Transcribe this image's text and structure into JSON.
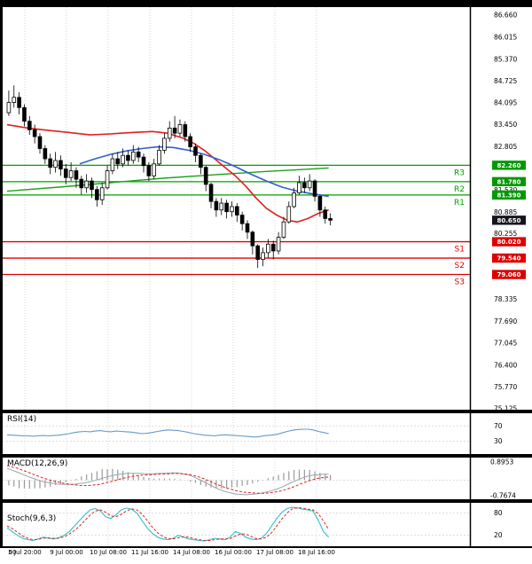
{
  "colors": {
    "background": "#000000",
    "panel_bg": "#ffffff",
    "grid": "#c4c4c4",
    "candle_up": "#ffffff",
    "candle_down": "#000000",
    "resistance": "#00a000",
    "support": "#e00000",
    "badge_resistance": "#009900",
    "badge_support": "#dd0000",
    "badge_price": "#15151f",
    "ma_red": "#e02020",
    "ma_blue": "#3060cc",
    "ma_green": "#1fa01f",
    "rsi_line": "#6699cc",
    "macd_signal": "#dd2222",
    "macd_hist": "#999999",
    "macd_line": "#9aa4b0",
    "stoch_k": "#30c0c8",
    "stoch_d": "#dd2222"
  },
  "chart_data": {
    "type": "candlestick",
    "title": "",
    "ylim": [
      75.125,
      86.66
    ],
    "y_ticks": [
      "86.660",
      "86.015",
      "85.370",
      "84.725",
      "84.095",
      "83.450",
      "82.805",
      "81.530",
      "80.885",
      "80.255",
      "78.335",
      "77.690",
      "77.045",
      "76.400",
      "75.770",
      "75.125"
    ],
    "x_labels": [
      "00",
      "5 Jul 20:00",
      "9 Jul 00:00",
      "10 Jul 08:00",
      "11 Jul 16:00",
      "14 Jul 08:00",
      "16 Jul 00:00",
      "17 Jul 08:00",
      "18 Jul 16:00"
    ],
    "levels": {
      "resistance": [
        {
          "name": "R3",
          "price": "82.260"
        },
        {
          "name": "R2",
          "price": "81.780"
        },
        {
          "name": "R1",
          "price": "81.390"
        }
      ],
      "support": [
        {
          "name": "S1",
          "price": "80.020"
        },
        {
          "name": "S2",
          "price": "79.540"
        },
        {
          "name": "S3",
          "price": "79.060"
        }
      ],
      "current_price": "80.650"
    },
    "ohlc": [
      [
        83.8,
        84.45,
        83.7,
        84.1
      ],
      [
        84.1,
        84.6,
        83.95,
        84.25
      ],
      [
        84.25,
        84.4,
        83.75,
        83.95
      ],
      [
        83.95,
        84.05,
        83.4,
        83.55
      ],
      [
        83.55,
        83.7,
        83.15,
        83.3
      ],
      [
        83.3,
        83.45,
        82.9,
        83.1
      ],
      [
        83.1,
        83.2,
        82.6,
        82.75
      ],
      [
        82.75,
        82.85,
        82.3,
        82.45
      ],
      [
        82.45,
        82.6,
        82.0,
        82.2
      ],
      [
        82.2,
        82.65,
        82.05,
        82.4
      ],
      [
        82.4,
        82.55,
        81.95,
        82.15
      ],
      [
        82.15,
        82.3,
        81.7,
        81.9
      ],
      [
        81.9,
        82.35,
        81.8,
        82.1
      ],
      [
        82.1,
        82.2,
        81.6,
        81.85
      ],
      [
        81.85,
        81.95,
        81.4,
        81.6
      ],
      [
        81.6,
        82.0,
        81.45,
        81.8
      ],
      [
        81.8,
        81.9,
        81.3,
        81.55
      ],
      [
        81.55,
        81.65,
        81.05,
        81.25
      ],
      [
        81.25,
        81.75,
        81.1,
        81.6
      ],
      [
        81.6,
        82.25,
        81.55,
        82.1
      ],
      [
        82.1,
        82.6,
        82.0,
        82.45
      ],
      [
        82.45,
        82.65,
        82.15,
        82.3
      ],
      [
        82.3,
        82.75,
        82.2,
        82.55
      ],
      [
        82.55,
        82.7,
        82.25,
        82.4
      ],
      [
        82.4,
        82.85,
        82.3,
        82.65
      ],
      [
        82.65,
        82.8,
        82.35,
        82.5
      ],
      [
        82.5,
        82.6,
        82.05,
        82.25
      ],
      [
        82.25,
        82.35,
        81.8,
        81.95
      ],
      [
        81.95,
        82.45,
        81.85,
        82.3
      ],
      [
        82.3,
        82.85,
        82.25,
        82.7
      ],
      [
        82.7,
        83.2,
        82.6,
        83.05
      ],
      [
        83.05,
        83.55,
        82.95,
        83.35
      ],
      [
        83.35,
        83.7,
        83.05,
        83.2
      ],
      [
        83.2,
        83.6,
        83.1,
        83.45
      ],
      [
        83.45,
        83.55,
        82.95,
        83.1
      ],
      [
        83.1,
        83.2,
        82.65,
        82.8
      ],
      [
        82.8,
        82.9,
        82.35,
        82.55
      ],
      [
        82.55,
        82.6,
        82.0,
        82.2
      ],
      [
        82.2,
        82.25,
        81.5,
        81.7
      ],
      [
        81.7,
        81.75,
        81.0,
        81.2
      ],
      [
        81.2,
        81.3,
        80.75,
        80.95
      ],
      [
        80.95,
        81.3,
        80.8,
        81.15
      ],
      [
        81.15,
        81.25,
        80.7,
        80.9
      ],
      [
        80.9,
        81.2,
        80.75,
        81.05
      ],
      [
        81.05,
        81.15,
        80.6,
        80.8
      ],
      [
        80.8,
        80.9,
        80.35,
        80.55
      ],
      [
        80.55,
        80.65,
        80.1,
        80.3
      ],
      [
        80.3,
        80.35,
        79.65,
        79.9
      ],
      [
        79.9,
        79.95,
        79.25,
        79.5
      ],
      [
        79.5,
        79.85,
        79.3,
        79.7
      ],
      [
        79.7,
        80.1,
        79.55,
        79.95
      ],
      [
        79.95,
        80.05,
        79.5,
        79.75
      ],
      [
        79.75,
        80.3,
        79.65,
        80.15
      ],
      [
        80.15,
        80.75,
        80.1,
        80.6
      ],
      [
        80.6,
        81.2,
        80.55,
        81.05
      ],
      [
        81.05,
        81.6,
        81.0,
        81.45
      ],
      [
        81.45,
        81.95,
        81.4,
        81.75
      ],
      [
        81.75,
        81.9,
        81.45,
        81.6
      ],
      [
        81.6,
        82.0,
        81.5,
        81.8
      ],
      [
        81.8,
        81.85,
        81.2,
        81.35
      ],
      [
        81.35,
        81.4,
        80.75,
        80.95
      ],
      [
        80.95,
        81.05,
        80.55,
        80.7
      ],
      [
        80.7,
        80.85,
        80.5,
        80.65
      ]
    ],
    "overlays": {
      "ma_red_points": [
        [
          0,
          83.45
        ],
        [
          4,
          83.35
        ],
        [
          8,
          83.28
        ],
        [
          12,
          83.22
        ],
        [
          16,
          83.15
        ],
        [
          20,
          83.18
        ],
        [
          24,
          83.22
        ],
        [
          28,
          83.25
        ],
        [
          31,
          83.2
        ],
        [
          34,
          83.05
        ],
        [
          36,
          82.9
        ],
        [
          38,
          82.7
        ],
        [
          40,
          82.45
        ],
        [
          42,
          82.2
        ],
        [
          44,
          81.95
        ],
        [
          46,
          81.65
        ],
        [
          48,
          81.3
        ],
        [
          50,
          81.0
        ],
        [
          52,
          80.8
        ],
        [
          54,
          80.65
        ],
        [
          56,
          80.6
        ],
        [
          58,
          80.7
        ],
        [
          60,
          80.85
        ],
        [
          62,
          80.95
        ]
      ],
      "ma_blue_points": [
        [
          14,
          82.3
        ],
        [
          17,
          82.45
        ],
        [
          20,
          82.58
        ],
        [
          23,
          82.68
        ],
        [
          26,
          82.75
        ],
        [
          29,
          82.8
        ],
        [
          32,
          82.78
        ],
        [
          35,
          82.7
        ],
        [
          38,
          82.58
        ],
        [
          41,
          82.42
        ],
        [
          44,
          82.22
        ],
        [
          47,
          82.0
        ],
        [
          50,
          81.8
        ],
        [
          53,
          81.62
        ],
        [
          56,
          81.5
        ],
        [
          59,
          81.42
        ],
        [
          62,
          81.35
        ]
      ],
      "ma_green_points": [
        [
          0,
          81.5
        ],
        [
          10,
          81.62
        ],
        [
          20,
          81.75
        ],
        [
          30,
          81.88
        ],
        [
          40,
          81.98
        ],
        [
          50,
          82.08
        ],
        [
          56,
          82.13
        ],
        [
          62,
          82.18
        ]
      ]
    },
    "indicators": {
      "rsi": {
        "label": "RSI(14)",
        "ticks": [
          "70",
          "30"
        ],
        "range": [
          0,
          100
        ],
        "values": [
          47,
          46,
          45,
          44,
          44,
          43,
          44,
          45,
          44,
          45,
          46,
          48,
          50,
          53,
          55,
          56,
          55,
          57,
          58,
          56,
          55,
          57,
          56,
          55,
          54,
          52,
          50,
          51,
          53,
          56,
          58,
          60,
          59,
          58,
          56,
          53,
          50,
          48,
          46,
          45,
          44,
          46,
          47,
          46,
          45,
          44,
          43,
          42,
          41,
          43,
          45,
          46,
          48,
          52,
          56,
          59,
          61,
          62,
          62,
          60,
          56,
          53,
          50
        ]
      },
      "macd": {
        "label": "MACD(12,26,9)",
        "ticks": [
          "0.8953",
          "-0.7674"
        ],
        "macd": [
          0.59,
          0.49,
          0.39,
          0.29,
          0.18,
          0.09,
          0.0,
          -0.08,
          -0.13,
          -0.17,
          -0.2,
          -0.21,
          -0.21,
          -0.2,
          -0.17,
          -0.13,
          -0.08,
          -0.01,
          0.07,
          0.14,
          0.21,
          0.26,
          0.3,
          0.33,
          0.34,
          0.34,
          0.33,
          0.31,
          0.31,
          0.33,
          0.34,
          0.35,
          0.36,
          0.35,
          0.31,
          0.25,
          0.16,
          0.04,
          -0.09,
          -0.22,
          -0.35,
          -0.47,
          -0.56,
          -0.62,
          -0.68,
          -0.7,
          -0.72,
          -0.7,
          -0.68,
          -0.64,
          -0.59,
          -0.52,
          -0.44,
          -0.34,
          -0.22,
          -0.1,
          0.01,
          0.12,
          0.2,
          0.25,
          0.27,
          0.29,
          0.29
        ],
        "signal": [
          0.72,
          0.65,
          0.59,
          0.49,
          0.39,
          0.29,
          0.2,
          0.1,
          0.03,
          -0.05,
          -0.1,
          -0.16,
          -0.2,
          -0.23,
          -0.26,
          -0.27,
          -0.26,
          -0.23,
          -0.2,
          -0.13,
          -0.07,
          0.0,
          0.07,
          0.13,
          0.18,
          0.22,
          0.25,
          0.26,
          0.27,
          0.29,
          0.3,
          0.31,
          0.33,
          0.33,
          0.31,
          0.29,
          0.23,
          0.16,
          0.07,
          -0.04,
          -0.16,
          -0.26,
          -0.36,
          -0.44,
          -0.51,
          -0.56,
          -0.6,
          -0.62,
          -0.64,
          -0.65,
          -0.64,
          -0.61,
          -0.57,
          -0.52,
          -0.44,
          -0.35,
          -0.25,
          -0.14,
          -0.05,
          0.03,
          0.09,
          0.13,
          0.16
        ]
      },
      "stoch": {
        "label": "Stoch(9,6,3)",
        "ticks": [
          "80",
          "20"
        ],
        "range": [
          0,
          100
        ],
        "k": [
          40,
          30,
          20,
          12,
          8,
          6,
          10,
          15,
          12,
          10,
          14,
          20,
          30,
          45,
          60,
          75,
          88,
          92,
          85,
          70,
          65,
          75,
          88,
          93,
          90,
          80,
          60,
          40,
          25,
          15,
          10,
          8,
          12,
          20,
          15,
          10,
          8,
          6,
          5,
          8,
          12,
          10,
          8,
          15,
          30,
          25,
          15,
          10,
          8,
          12,
          25,
          45,
          65,
          82,
          92,
          95,
          93,
          90,
          88,
          85,
          60,
          30,
          15
        ],
        "d": [
          45,
          38,
          28,
          18,
          12,
          8,
          9,
          12,
          13,
          12,
          12,
          16,
          23,
          33,
          45,
          60,
          74,
          85,
          88,
          82,
          72,
          70,
          76,
          85,
          91,
          88,
          77,
          60,
          42,
          27,
          17,
          11,
          10,
          13,
          16,
          15,
          11,
          8,
          6,
          6,
          8,
          10,
          10,
          11,
          18,
          23,
          23,
          17,
          11,
          10,
          15,
          27,
          45,
          64,
          80,
          91,
          94,
          93,
          90,
          88,
          78,
          58,
          35
        ]
      }
    }
  }
}
